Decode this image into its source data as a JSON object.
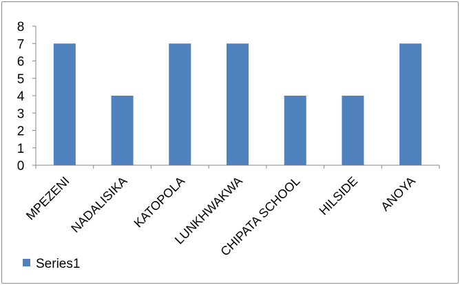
{
  "chart_data": {
    "type": "bar",
    "categories": [
      "MPEZENI",
      "NADALISIKA",
      "KATOPOLA",
      "LUNKHWAKWA",
      "CHIPATA SCHOOL",
      "HILSIDE",
      "ANOYA"
    ],
    "series": [
      {
        "name": "Series1",
        "values": [
          7,
          4,
          7,
          7,
          4,
          4,
          7
        ],
        "color": "#4f81bd"
      }
    ],
    "title": "",
    "xlabel": "",
    "ylabel": "",
    "ylim": [
      0,
      8
    ],
    "yticks": [
      "0",
      "1",
      "2",
      "3",
      "4",
      "5",
      "6",
      "7",
      "8"
    ],
    "grid": false,
    "legend_position": "bottom-left"
  }
}
